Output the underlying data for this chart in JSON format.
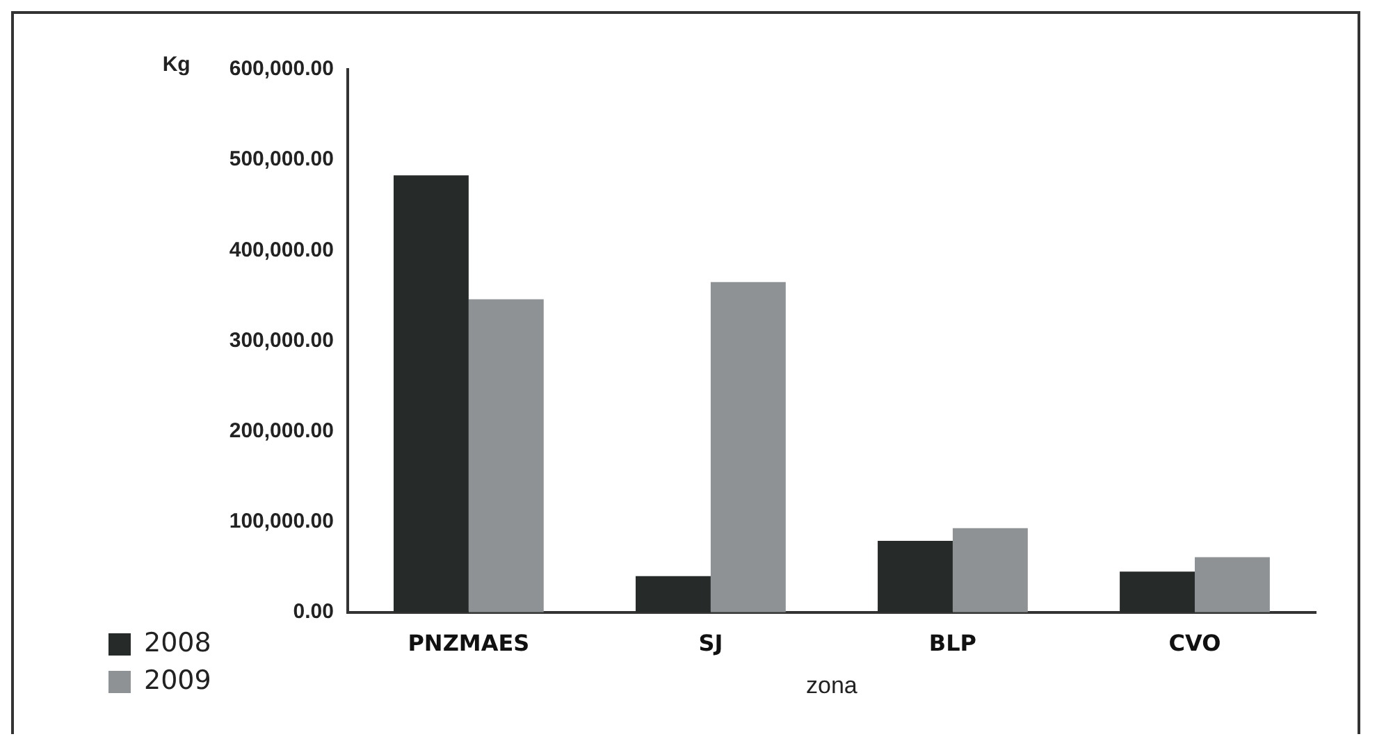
{
  "chart_data": {
    "type": "bar",
    "ylabel": "Kg",
    "xlabel": "zona",
    "categories": [
      "PNZMAES",
      "SJ",
      "BLP",
      "CVO"
    ],
    "series": [
      {
        "name": "2008",
        "color": "#262a29",
        "values": [
          483000,
          40000,
          79000,
          45000
        ]
      },
      {
        "name": "2009",
        "color": "#8e9294",
        "values": [
          346000,
          365000,
          93000,
          61000
        ]
      }
    ],
    "ylim": [
      0,
      600000
    ],
    "yticks": [
      {
        "value": 0,
        "label": "0.00"
      },
      {
        "value": 100000,
        "label": "100,000.00"
      },
      {
        "value": 200000,
        "label": "200,000.00"
      },
      {
        "value": 300000,
        "label": "300,000.00"
      },
      {
        "value": 400000,
        "label": "400,000.00"
      },
      {
        "value": 500000,
        "label": "500,000.00"
      },
      {
        "value": 600000,
        "label": "600,000.00"
      }
    ],
    "grid": false,
    "legend": "bottom left"
  }
}
